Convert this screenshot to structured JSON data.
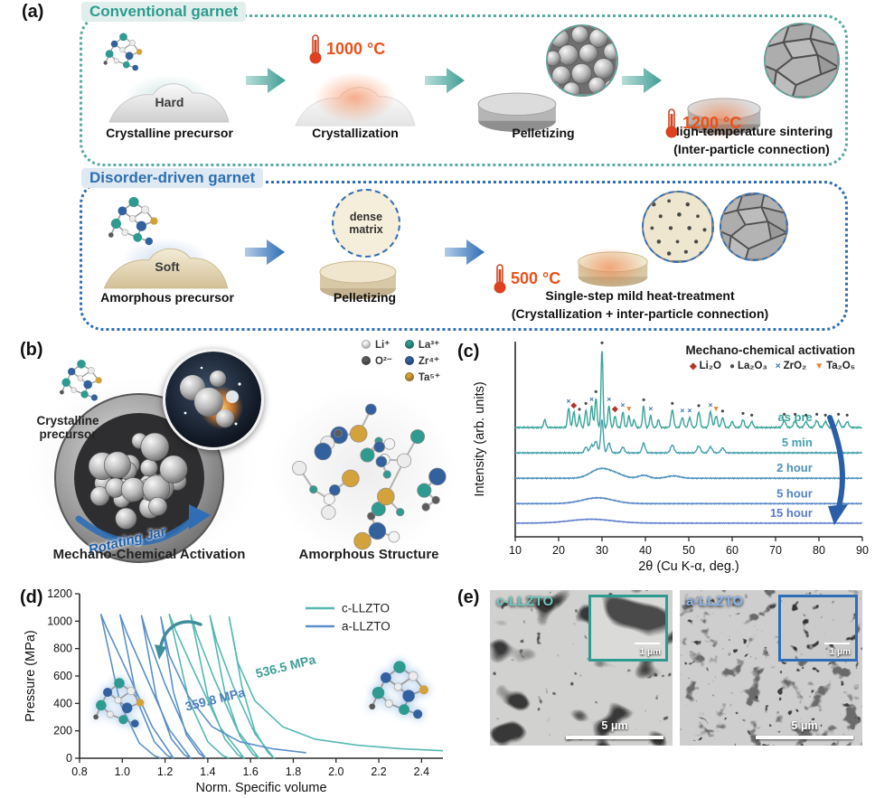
{
  "panels": {
    "a": "(a)",
    "b": "(b)",
    "c": "(c)",
    "d": "(d)",
    "e": "(e)"
  },
  "panel_a": {
    "conventional": {
      "title": "Conventional garnet",
      "step1": {
        "tag": "Hard",
        "caption": "Crystalline precursor"
      },
      "step2": {
        "temp": "1000 °C",
        "caption": "Crystallization"
      },
      "step3": {
        "caption": "Pelletizing"
      },
      "step4": {
        "temp": "1200 °C",
        "caption": "High-temperature sintering",
        "caption2": "(Inter-particle connection)"
      }
    },
    "disorder": {
      "title": "Disorder-driven garnet",
      "step1": {
        "tag": "Soft",
        "caption": "Amorphous precursor"
      },
      "step2": {
        "note1": "dense",
        "note2": "matrix",
        "caption": "Pelletizing"
      },
      "step3": {
        "temp": "500 °C",
        "caption": "Single-step mild heat-treatment",
        "caption2": "(Crystallization + inter-particle connection)"
      }
    }
  },
  "panel_b": {
    "ions": [
      {
        "label": "Li⁺",
        "color": "#f2f2f2"
      },
      {
        "label": "O²⁻",
        "color": "#5b5b5b"
      },
      {
        "label": "La³⁺",
        "color": "#2f9a8f"
      },
      {
        "label": "Zr⁴⁺",
        "color": "#33619e"
      },
      {
        "label": "Ta⁵⁺",
        "color": "#d4a23a"
      }
    ],
    "precursor_label": "Crystalline precursor",
    "jar_label": "Rotating Jar",
    "left_caption": "Mechano-Chemical Activation",
    "right_caption": "Amorphous Structure"
  },
  "chart_data": [
    {
      "id": "xrd",
      "type": "line",
      "title": "Mechano-chemical activation",
      "xlabel": "2θ (Cu K-α, deg.)",
      "ylabel": "Intensity (arb. units)",
      "xlim": [
        10,
        90
      ],
      "xticks": [
        10,
        20,
        30,
        40,
        50,
        60,
        70,
        80,
        90
      ],
      "phase_legend": [
        {
          "marker": "diamond",
          "label": "Li₂O",
          "color": "#b5342c"
        },
        {
          "marker": "circle",
          "label": "La₂O₃",
          "color": "#4a4a4a"
        },
        {
          "marker": "x",
          "label": "ZrO₂",
          "color": "#3a6db5"
        },
        {
          "marker": "triangle",
          "label": "Ta₂O₅",
          "color": "#e2862f"
        }
      ],
      "traces": [
        {
          "name": "as pre",
          "color": "#3aa49a",
          "baseline": 0.44,
          "peaks": [
            [
              16.8,
              0.04,
              0.25
            ],
            [
              22.3,
              0.1,
              0.25
            ],
            [
              23.5,
              0.08,
              0.25
            ],
            [
              24.8,
              0.06,
              0.25
            ],
            [
              26.3,
              0.09,
              0.25
            ],
            [
              27.6,
              0.11,
              0.25
            ],
            [
              28.6,
              0.15,
              0.25
            ],
            [
              30,
              0.4,
              0.22
            ],
            [
              31.6,
              0.11,
              0.25
            ],
            [
              33,
              0.06,
              0.25
            ],
            [
              34.8,
              0.08,
              0.25
            ],
            [
              36.2,
              0.06,
              0.25
            ],
            [
              37.4,
              0.04,
              0.25
            ],
            [
              39.6,
              0.11,
              0.25
            ],
            [
              41.2,
              0.06,
              0.25
            ],
            [
              43,
              0.04,
              0.25
            ],
            [
              46.2,
              0.09,
              0.3
            ],
            [
              48.5,
              0.05,
              0.3
            ],
            [
              50.2,
              0.05,
              0.3
            ],
            [
              52.3,
              0.08,
              0.3
            ],
            [
              55,
              0.08,
              0.3
            ],
            [
              56.3,
              0.06,
              0.3
            ],
            [
              57.8,
              0.05,
              0.3
            ],
            [
              60,
              0.03,
              0.3
            ],
            [
              62.5,
              0.04,
              0.3
            ],
            [
              64.5,
              0.03,
              0.3
            ],
            [
              72,
              0.035,
              0.35
            ],
            [
              74.5,
              0.035,
              0.35
            ],
            [
              77,
              0.03,
              0.35
            ],
            [
              79.5,
              0.035,
              0.35
            ],
            [
              81.5,
              0.03,
              0.35
            ],
            [
              84.5,
              0.035,
              0.35
            ],
            [
              86.5,
              0.03,
              0.35
            ]
          ]
        },
        {
          "name": "5 min",
          "color": "#43a0ab",
          "baseline": 0.57,
          "peaks": [
            [
              26.3,
              0.03,
              0.35
            ],
            [
              27.6,
              0.04,
              0.35
            ],
            [
              28.6,
              0.06,
              0.35
            ],
            [
              30,
              0.17,
              0.3
            ],
            [
              31.6,
              0.05,
              0.35
            ],
            [
              34.8,
              0.03,
              0.35
            ],
            [
              39.6,
              0.05,
              0.35
            ],
            [
              46.2,
              0.04,
              0.4
            ],
            [
              52.3,
              0.035,
              0.4
            ],
            [
              55,
              0.03,
              0.4
            ],
            [
              57.8,
              0.025,
              0.4
            ]
          ]
        },
        {
          "name": "2 hour",
          "color": "#4b92bb",
          "baseline": 0.7,
          "peaks": [
            [
              29.5,
              0.045,
              2.2
            ],
            [
              33,
              0.02,
              2.0
            ],
            [
              39.6,
              0.015,
              1.2
            ],
            [
              46.5,
              0.012,
              1.5
            ]
          ]
        },
        {
          "name": "5 hour",
          "color": "#5384c5",
          "baseline": 0.83,
          "peaks": [
            [
              29,
              0.03,
              3.5
            ]
          ]
        },
        {
          "name": "15 hour",
          "color": "#5a79cd",
          "baseline": 0.93,
          "peaks": [
            [
              27.5,
              0.02,
              5.0
            ]
          ]
        }
      ],
      "peak_markers": [
        [
          22.3,
          "x"
        ],
        [
          23.5,
          "diamond"
        ],
        [
          24.8,
          "circle"
        ],
        [
          26.3,
          "circle"
        ],
        [
          27.6,
          "x"
        ],
        [
          28.6,
          "circle"
        ],
        [
          30,
          "circle"
        ],
        [
          31.6,
          "x"
        ],
        [
          33,
          "diamond"
        ],
        [
          34.8,
          "x"
        ],
        [
          36.2,
          "triangle"
        ],
        [
          39.6,
          "circle"
        ],
        [
          41.2,
          "x"
        ],
        [
          46.2,
          "circle"
        ],
        [
          48.5,
          "x"
        ],
        [
          50.2,
          "x"
        ],
        [
          52.3,
          "circle"
        ],
        [
          55,
          "x"
        ],
        [
          56.3,
          "triangle"
        ],
        [
          57.8,
          "circle"
        ],
        [
          62.5,
          "circle"
        ],
        [
          64.5,
          "circle"
        ],
        [
          72,
          "circle"
        ],
        [
          74.5,
          "circle"
        ],
        [
          77,
          "circle"
        ],
        [
          79.5,
          "circle"
        ],
        [
          81.5,
          "circle"
        ],
        [
          84.5,
          "circle"
        ],
        [
          86.5,
          "circle"
        ]
      ]
    },
    {
      "id": "compression",
      "type": "line",
      "xlabel": "Norm. Specific volume",
      "ylabel": "Pressure (MPa)",
      "xlim": [
        0.8,
        2.5
      ],
      "ylim": [
        0,
        1200
      ],
      "xticks": [
        0.8,
        1.0,
        1.2,
        1.4,
        1.6,
        1.8,
        2.0,
        2.2,
        2.4
      ],
      "yticks": [
        0,
        200,
        400,
        600,
        800,
        1000,
        1200
      ],
      "series": [
        {
          "name": "c-LLZTO",
          "color": "#56b8b0",
          "points": [
            [
              2.5,
              55
            ],
            [
              2.3,
              70
            ],
            [
              2.1,
              95
            ],
            [
              1.9,
              140
            ],
            [
              1.75,
              230
            ],
            [
              1.62,
              420
            ],
            [
              1.54,
              700
            ],
            [
              1.5,
              1030
            ],
            [
              1.56,
              520
            ],
            [
              1.62,
              200
            ],
            [
              1.68,
              45
            ],
            [
              1.71,
              0
            ],
            [
              1.62,
              180
            ],
            [
              1.52,
              520
            ],
            [
              1.44,
              860
            ],
            [
              1.41,
              1040
            ],
            [
              1.48,
              480
            ],
            [
              1.55,
              160
            ],
            [
              1.61,
              30
            ],
            [
              1.64,
              0
            ],
            [
              1.54,
              200
            ],
            [
              1.43,
              580
            ],
            [
              1.35,
              900
            ],
            [
              1.32,
              1045
            ],
            [
              1.4,
              450
            ],
            [
              1.48,
              140
            ],
            [
              1.54,
              25
            ],
            [
              1.57,
              0
            ],
            [
              1.46,
              220
            ],
            [
              1.34,
              620
            ],
            [
              1.25,
              930
            ],
            [
              1.22,
              1050
            ],
            [
              1.31,
              430
            ],
            [
              1.4,
              120
            ],
            [
              1.47,
              20
            ],
            [
              1.5,
              0
            ]
          ]
        },
        {
          "name": "a-LLZTO",
          "color": "#5b8fc9",
          "points": [
            [
              1.86,
              40
            ],
            [
              1.7,
              70
            ],
            [
              1.55,
              120
            ],
            [
              1.42,
              230
            ],
            [
              1.31,
              450
            ],
            [
              1.22,
              750
            ],
            [
              1.18,
              1030
            ],
            [
              1.24,
              480
            ],
            [
              1.3,
              170
            ],
            [
              1.36,
              35
            ],
            [
              1.39,
              0
            ],
            [
              1.3,
              190
            ],
            [
              1.2,
              540
            ],
            [
              1.12,
              880
            ],
            [
              1.09,
              1040
            ],
            [
              1.16,
              440
            ],
            [
              1.23,
              140
            ],
            [
              1.29,
              25
            ],
            [
              1.32,
              0
            ],
            [
              1.22,
              210
            ],
            [
              1.11,
              600
            ],
            [
              1.02,
              920
            ],
            [
              0.99,
              1045
            ],
            [
              1.07,
              420
            ],
            [
              1.15,
              120
            ],
            [
              1.21,
              20
            ],
            [
              1.24,
              0
            ],
            [
              1.14,
              230
            ],
            [
              1.02,
              640
            ],
            [
              0.93,
              940
            ],
            [
              0.9,
              1050
            ],
            [
              0.99,
              400
            ],
            [
              1.08,
              110
            ],
            [
              1.15,
              18
            ],
            [
              1.18,
              0
            ]
          ]
        }
      ],
      "annotations": [
        {
          "text": "536.5 MPa",
          "x": 1.63,
          "y": 585,
          "color": "#3f9e96",
          "rotate": -14
        },
        {
          "text": "359.8 MPa",
          "x": 1.3,
          "y": 345,
          "color": "#4a7fc0",
          "rotate": -14
        }
      ]
    }
  ],
  "panel_e": {
    "images": [
      {
        "name": "c-LLZTO",
        "accent": "#2f9a8f",
        "label_color": "#6cc8be",
        "scale_main": "5 μm",
        "scale_inset": "1 μm"
      },
      {
        "name": "a-LLZTO",
        "accent": "#2f6eb5",
        "label_color": "#8ab4e8",
        "scale_main": "5 μm",
        "scale_inset": "1 μm"
      }
    ]
  }
}
